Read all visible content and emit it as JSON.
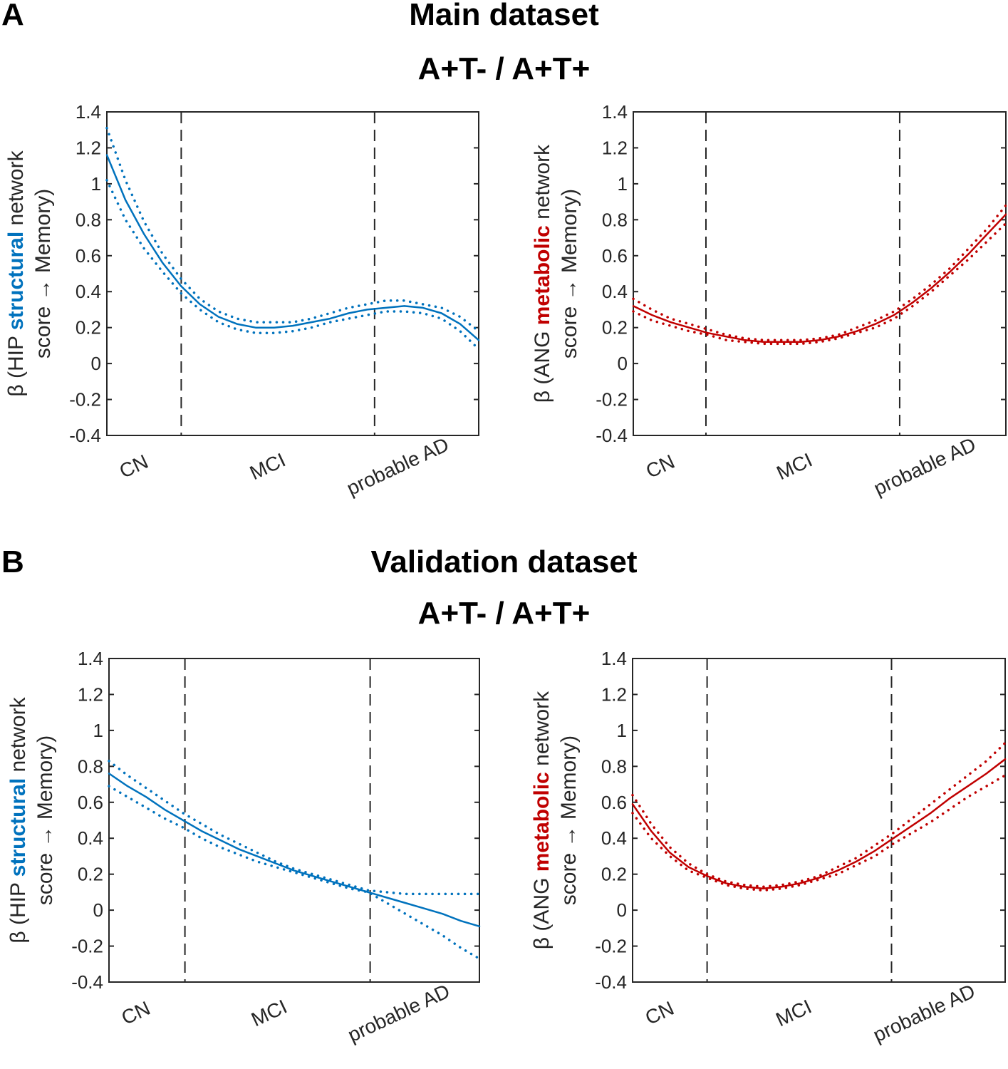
{
  "panels": [
    {
      "letter": "A",
      "title": "Main dataset",
      "subtitle": "A+T- / A+T+"
    },
    {
      "letter": "B",
      "title": "Validation dataset",
      "subtitle": "A+T- / A+T+"
    }
  ],
  "colors": {
    "structural": "#0072BD",
    "metabolic": "#C00000",
    "axis": "#262626"
  },
  "chart_data": [
    {
      "id": "A-structural",
      "type": "line",
      "ylabel_prefix": "β (HIP ",
      "ylabel_highlight": "structural",
      "ylabel_suffix": " network",
      "ylabel_line2": "score → Memory)",
      "color": "#0072BD",
      "ylim": [
        -0.4,
        1.4
      ],
      "yticks": [
        -0.4,
        -0.2,
        0,
        0.2,
        0.4,
        0.6,
        0.8,
        1,
        1.2,
        1.4
      ],
      "ytick_labels": [
        "-0.4",
        "-0.2",
        "0",
        "0.2",
        "0.4",
        "0.6",
        "0.8",
        "1",
        "1.2",
        "1.4"
      ],
      "xlim": [
        0,
        100
      ],
      "stage_boundaries": [
        20,
        72
      ],
      "stage_labels": [
        "CN",
        "MCI",
        "probable AD"
      ],
      "stage_label_x": [
        8,
        44,
        79
      ],
      "x": [
        0,
        5,
        10,
        15,
        20,
        25,
        30,
        35,
        40,
        45,
        50,
        55,
        60,
        65,
        70,
        75,
        80,
        85,
        90,
        95,
        100
      ],
      "series": [
        {
          "name": "estimate",
          "style": "solid",
          "values": [
            1.16,
            0.91,
            0.72,
            0.56,
            0.43,
            0.33,
            0.26,
            0.22,
            0.2,
            0.2,
            0.21,
            0.23,
            0.25,
            0.28,
            0.3,
            0.31,
            0.32,
            0.31,
            0.28,
            0.22,
            0.13
          ]
        },
        {
          "name": "upper CI",
          "style": "dotted",
          "values": [
            1.31,
            1.02,
            0.79,
            0.61,
            0.47,
            0.36,
            0.29,
            0.25,
            0.23,
            0.23,
            0.23,
            0.25,
            0.28,
            0.31,
            0.33,
            0.35,
            0.35,
            0.33,
            0.31,
            0.26,
            0.18
          ]
        },
        {
          "name": "lower CI",
          "style": "dotted",
          "values": [
            1.02,
            0.8,
            0.64,
            0.51,
            0.39,
            0.3,
            0.23,
            0.19,
            0.17,
            0.17,
            0.18,
            0.2,
            0.23,
            0.25,
            0.27,
            0.29,
            0.29,
            0.28,
            0.25,
            0.18,
            0.08
          ]
        }
      ]
    },
    {
      "id": "A-metabolic",
      "type": "line",
      "ylabel_prefix": "β (ANG ",
      "ylabel_highlight": "metabolic",
      "ylabel_suffix": " network",
      "ylabel_line2": "score → Memory)",
      "color": "#C00000",
      "ylim": [
        -0.4,
        1.4
      ],
      "yticks": [
        -0.4,
        -0.2,
        0,
        0.2,
        0.4,
        0.6,
        0.8,
        1,
        1.2,
        1.4
      ],
      "ytick_labels": [
        "-0.4",
        "-0.2",
        "0",
        "0.2",
        "0.4",
        "0.6",
        "0.8",
        "1",
        "1.2",
        "1.4"
      ],
      "xlim": [
        0,
        100
      ],
      "stage_boundaries": [
        19.5,
        71.5
      ],
      "stage_labels": [
        "CN",
        "MCI",
        "probable AD"
      ],
      "stage_label_x": [
        8,
        44,
        79
      ],
      "x": [
        0,
        5,
        10,
        15,
        20,
        25,
        30,
        35,
        40,
        45,
        50,
        55,
        60,
        65,
        70,
        75,
        80,
        85,
        90,
        95,
        100
      ],
      "series": [
        {
          "name": "estimate",
          "style": "solid",
          "values": [
            0.32,
            0.27,
            0.23,
            0.2,
            0.17,
            0.15,
            0.13,
            0.12,
            0.12,
            0.12,
            0.13,
            0.15,
            0.18,
            0.22,
            0.27,
            0.34,
            0.42,
            0.51,
            0.61,
            0.72,
            0.83
          ]
        },
        {
          "name": "upper CI",
          "style": "dotted",
          "values": [
            0.36,
            0.3,
            0.25,
            0.22,
            0.19,
            0.16,
            0.14,
            0.13,
            0.13,
            0.13,
            0.14,
            0.16,
            0.2,
            0.24,
            0.29,
            0.36,
            0.44,
            0.53,
            0.64,
            0.75,
            0.88
          ]
        },
        {
          "name": "lower CI",
          "style": "dotted",
          "values": [
            0.29,
            0.24,
            0.21,
            0.18,
            0.16,
            0.13,
            0.12,
            0.11,
            0.11,
            0.11,
            0.12,
            0.14,
            0.17,
            0.2,
            0.25,
            0.32,
            0.4,
            0.49,
            0.58,
            0.68,
            0.78
          ]
        }
      ]
    },
    {
      "id": "B-structural",
      "type": "line",
      "ylabel_prefix": "β (HIP ",
      "ylabel_highlight": "structural",
      "ylabel_suffix": " network",
      "ylabel_line2": "score → Memory)",
      "color": "#0072BD",
      "ylim": [
        -0.4,
        1.4
      ],
      "yticks": [
        -0.4,
        -0.2,
        0,
        0.2,
        0.4,
        0.6,
        0.8,
        1,
        1.2,
        1.4
      ],
      "ytick_labels": [
        "-0.4",
        "-0.2",
        "0",
        "0.2",
        "0.4",
        "0.6",
        "0.8",
        "1",
        "1.2",
        "1.4"
      ],
      "xlim": [
        0,
        100
      ],
      "stage_boundaries": [
        20.5,
        70.5
      ],
      "stage_labels": [
        "CN",
        "MCI",
        "probable AD"
      ],
      "stage_label_x": [
        8,
        44,
        79
      ],
      "x": [
        0,
        5,
        10,
        15,
        20,
        25,
        30,
        35,
        40,
        45,
        50,
        55,
        60,
        65,
        70,
        75,
        80,
        85,
        90,
        95,
        100
      ],
      "series": [
        {
          "name": "estimate",
          "style": "solid",
          "values": [
            0.76,
            0.69,
            0.63,
            0.56,
            0.5,
            0.44,
            0.39,
            0.34,
            0.3,
            0.26,
            0.22,
            0.19,
            0.16,
            0.13,
            0.1,
            0.07,
            0.04,
            0.01,
            -0.02,
            -0.06,
            -0.09
          ]
        },
        {
          "name": "upper CI",
          "style": "dotted",
          "values": [
            0.83,
            0.75,
            0.68,
            0.61,
            0.54,
            0.48,
            0.42,
            0.37,
            0.32,
            0.27,
            0.23,
            0.2,
            0.17,
            0.14,
            0.11,
            0.1,
            0.09,
            0.09,
            0.09,
            0.09,
            0.09
          ]
        },
        {
          "name": "lower CI",
          "style": "dotted",
          "values": [
            0.69,
            0.63,
            0.57,
            0.51,
            0.46,
            0.4,
            0.35,
            0.31,
            0.27,
            0.24,
            0.21,
            0.18,
            0.15,
            0.12,
            0.1,
            0.04,
            -0.02,
            -0.08,
            -0.14,
            -0.21,
            -0.27
          ]
        }
      ]
    },
    {
      "id": "B-metabolic",
      "type": "line",
      "ylabel_prefix": "β (ANG ",
      "ylabel_highlight": "metabolic",
      "ylabel_suffix": " network",
      "ylabel_line2": "score → Memory)",
      "color": "#C00000",
      "ylim": [
        -0.4,
        1.4
      ],
      "yticks": [
        -0.4,
        -0.2,
        0,
        0.2,
        0.4,
        0.6,
        0.8,
        1,
        1.2,
        1.4
      ],
      "ytick_labels": [
        "-0.4",
        "-0.2",
        "0",
        "0.2",
        "0.4",
        "0.6",
        "0.8",
        "1",
        "1.2",
        "1.4"
      ],
      "xlim": [
        0,
        100
      ],
      "stage_boundaries": [
        20,
        69.5
      ],
      "stage_labels": [
        "CN",
        "MCI",
        "probable AD"
      ],
      "stage_label_x": [
        8,
        44,
        79
      ],
      "x": [
        0,
        5,
        10,
        15,
        20,
        25,
        30,
        35,
        40,
        45,
        50,
        55,
        60,
        65,
        70,
        75,
        80,
        85,
        90,
        95,
        100
      ],
      "series": [
        {
          "name": "estimate",
          "style": "solid",
          "values": [
            0.59,
            0.44,
            0.32,
            0.24,
            0.19,
            0.15,
            0.13,
            0.12,
            0.13,
            0.15,
            0.18,
            0.22,
            0.27,
            0.33,
            0.4,
            0.47,
            0.54,
            0.62,
            0.69,
            0.76,
            0.84
          ]
        },
        {
          "name": "upper CI",
          "style": "dotted",
          "values": [
            0.64,
            0.48,
            0.35,
            0.26,
            0.2,
            0.16,
            0.14,
            0.13,
            0.14,
            0.16,
            0.19,
            0.24,
            0.29,
            0.36,
            0.43,
            0.51,
            0.59,
            0.67,
            0.75,
            0.83,
            0.93
          ]
        },
        {
          "name": "lower CI",
          "style": "dotted",
          "values": [
            0.54,
            0.4,
            0.3,
            0.22,
            0.18,
            0.14,
            0.12,
            0.11,
            0.12,
            0.14,
            0.17,
            0.2,
            0.25,
            0.3,
            0.37,
            0.43,
            0.49,
            0.56,
            0.63,
            0.69,
            0.75
          ]
        }
      ]
    }
  ]
}
